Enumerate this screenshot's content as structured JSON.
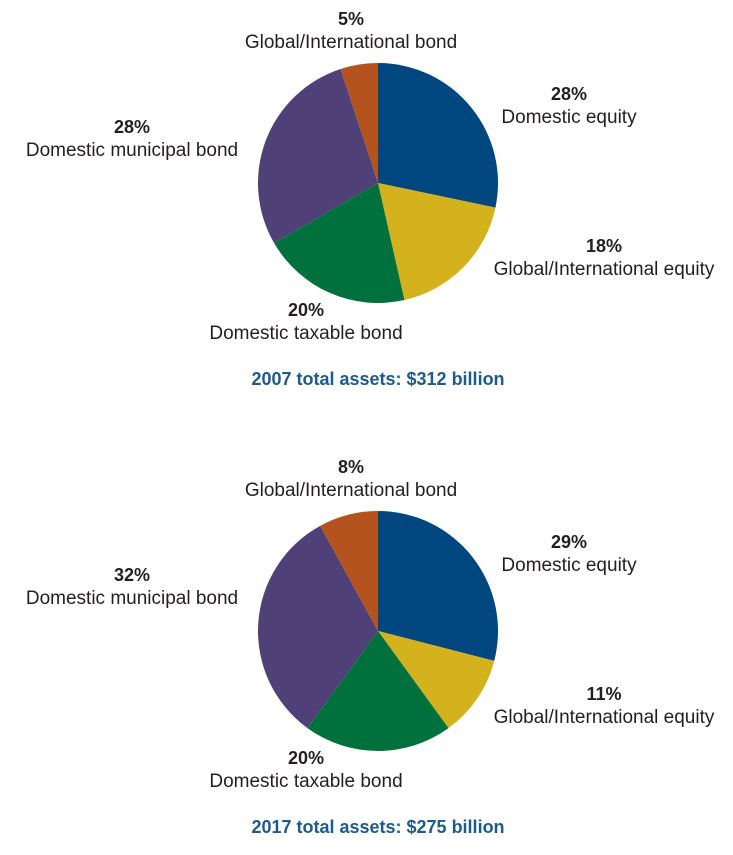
{
  "chart_data": [
    {
      "type": "pie",
      "title": "2007 total assets: $312 billion",
      "categories": [
        "Domestic equity",
        "Global/International equity",
        "Domestic taxable bond",
        "Domestic municipal bond",
        "Global/International bond"
      ],
      "values": [
        28,
        18,
        20,
        28,
        5
      ],
      "value_labels": [
        "28%",
        "18%",
        "20%",
        "28%",
        "5%"
      ],
      "colors": [
        "#00467f",
        "#d4b21e",
        "#00703c",
        "#4f4178",
        "#b5531f"
      ]
    },
    {
      "type": "pie",
      "title": "2017 total assets: $275 billion",
      "categories": [
        "Domestic equity",
        "Global/International equity",
        "Domestic taxable bond",
        "Domestic municipal bond",
        "Global/International bond"
      ],
      "values": [
        29,
        11,
        20,
        32,
        8
      ],
      "value_labels": [
        "29%",
        "11%",
        "20%",
        "32%",
        "8%"
      ],
      "colors": [
        "#00467f",
        "#d4b21e",
        "#00703c",
        "#4f4178",
        "#b5531f"
      ]
    }
  ]
}
